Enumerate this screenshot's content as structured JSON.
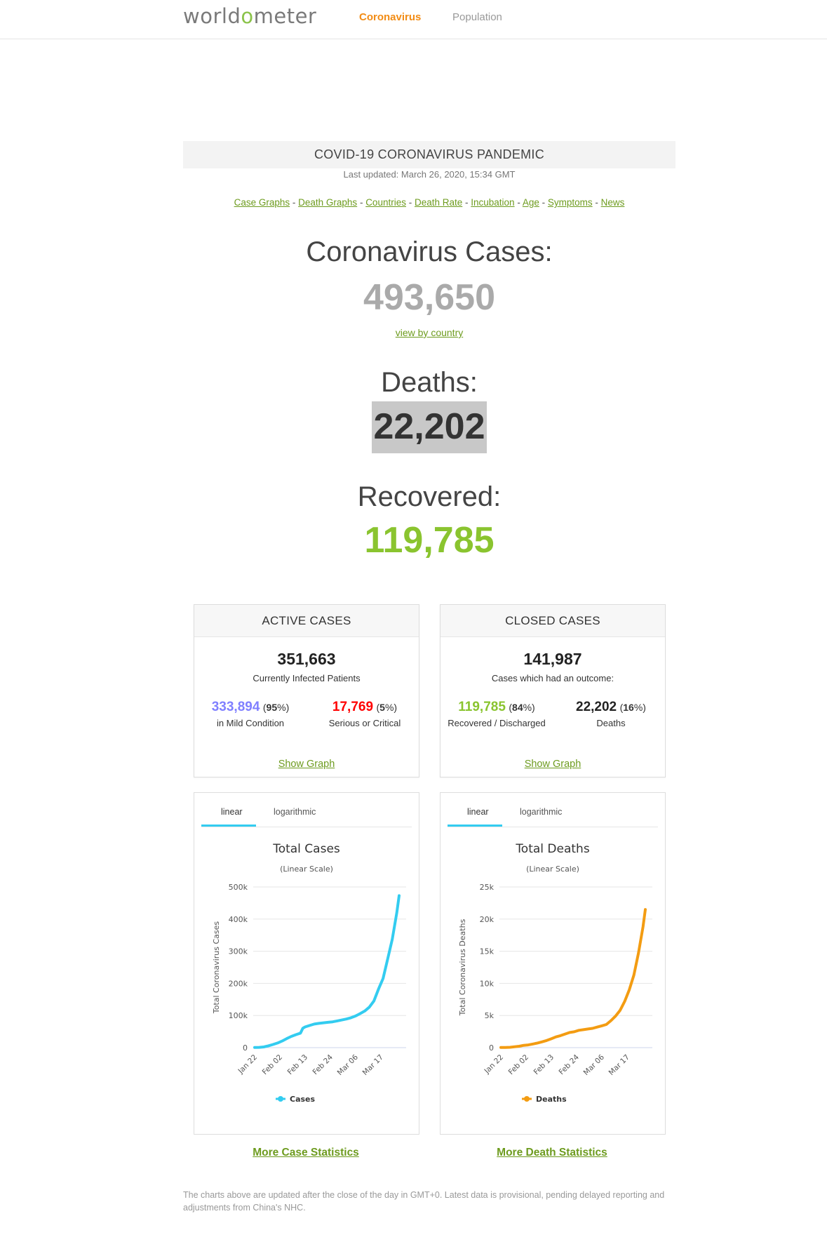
{
  "header": {
    "logo_prefix": "world",
    "logo_o": "o",
    "logo_suffix": "meter",
    "nav": [
      {
        "label": "Coronavirus",
        "active": true
      },
      {
        "label": "Population",
        "active": false
      }
    ]
  },
  "banner": {
    "title": "COVID-19 CORONAVIRUS PANDEMIC",
    "updated": "Last updated: March 26, 2020, 15:34 GMT"
  },
  "quicklinks": [
    "Case Graphs",
    "Death Graphs",
    "Countries",
    "Death Rate",
    "Incubation",
    "Age",
    "Symptoms",
    "News"
  ],
  "quicklinks_separator": " - ",
  "main": {
    "cases_label": "Coronavirus Cases:",
    "cases_value": "493,650",
    "view_by_country": "view by country",
    "deaths_label": "Deaths:",
    "deaths_value": "22,202",
    "recovered_label": "Recovered:",
    "recovered_value": "119,785"
  },
  "active_panel": {
    "header": "ACTIVE CASES",
    "total": "351,663",
    "total_label": "Currently Infected Patients",
    "left_value": "333,894",
    "left_pct": "95",
    "left_label": "in Mild Condition",
    "right_value": "17,769",
    "right_pct": "5",
    "right_label": "Serious or Critical",
    "show_graph": "Show Graph"
  },
  "closed_panel": {
    "header": "CLOSED CASES",
    "total": "141,987",
    "total_label": "Cases which had an outcome:",
    "left_value": "119,785",
    "left_pct": "84",
    "left_label": "Recovered / Discharged",
    "right_value": "22,202",
    "right_pct": "16",
    "right_label": "Deaths",
    "show_graph": "Show Graph"
  },
  "colors": {
    "accent": "#f28c15",
    "link": "#6d9b1e",
    "mild": "#8080ff",
    "critical": "#ff0000",
    "recovered": "#8ac42f",
    "cases_line": "#33ccf0",
    "deaths_line": "#f39c12"
  },
  "chart_tabs": {
    "linear": "linear",
    "log": "logarithmic"
  },
  "chart_data": [
    {
      "type": "line",
      "title": "Total Cases",
      "subtitle": "(Linear Scale)",
      "ylabel": "Total Coronavirus Cases",
      "yticks": [
        "0",
        "100k",
        "200k",
        "300k",
        "400k",
        "500k"
      ],
      "ylim": [
        0,
        500000
      ],
      "xticks": [
        "Jan 22",
        "Feb 02",
        "Feb 13",
        "Feb 24",
        "Mar 06",
        "Mar 17"
      ],
      "legend": "Cases",
      "series": [
        {
          "name": "Cases",
          "color": "#33ccf0",
          "x": [
            "Jan 22",
            "Jan 24",
            "Jan 26",
            "Jan 28",
            "Jan 30",
            "Feb 01",
            "Feb 03",
            "Feb 05",
            "Feb 07",
            "Feb 09",
            "Feb 11",
            "Feb 12",
            "Feb 13",
            "Feb 15",
            "Feb 17",
            "Feb 19",
            "Feb 21",
            "Feb 23",
            "Feb 25",
            "Feb 27",
            "Feb 29",
            "Mar 02",
            "Mar 04",
            "Mar 06",
            "Mar 08",
            "Mar 10",
            "Mar 12",
            "Mar 14",
            "Mar 16",
            "Mar 18",
            "Mar 20",
            "Mar 22",
            "Mar 24",
            "Mar 25"
          ],
          "values": [
            580,
            900,
            2100,
            5600,
            9800,
            14500,
            20600,
            28200,
            34900,
            40500,
            45200,
            60300,
            64400,
            69000,
            73300,
            75600,
            77300,
            78900,
            80400,
            83100,
            86000,
            89100,
            93100,
            98400,
            106000,
            114000,
            126000,
            145000,
            182000,
            215000,
            276000,
            337000,
            420000,
            473000
          ]
        }
      ]
    },
    {
      "type": "line",
      "title": "Total Deaths",
      "subtitle": "(Linear Scale)",
      "ylabel": "Total Coronavirus Deaths",
      "yticks": [
        "0",
        "5k",
        "10k",
        "15k",
        "20k",
        "25k"
      ],
      "ylim": [
        0,
        25000
      ],
      "xticks": [
        "Jan 22",
        "Feb 02",
        "Feb 13",
        "Feb 24",
        "Mar 06",
        "Mar 17"
      ],
      "legend": "Deaths",
      "series": [
        {
          "name": "Deaths",
          "color": "#f39c12",
          "x": [
            "Jan 22",
            "Jan 24",
            "Jan 26",
            "Jan 28",
            "Jan 30",
            "Feb 01",
            "Feb 03",
            "Feb 05",
            "Feb 07",
            "Feb 09",
            "Feb 11",
            "Feb 13",
            "Feb 15",
            "Feb 17",
            "Feb 19",
            "Feb 21",
            "Feb 23",
            "Feb 25",
            "Feb 27",
            "Feb 29",
            "Mar 02",
            "Mar 04",
            "Mar 06",
            "Mar 08",
            "Mar 10",
            "Mar 12",
            "Mar 14",
            "Mar 16",
            "Mar 18",
            "Mar 20",
            "Mar 22",
            "Mar 24",
            "Mar 25"
          ],
          "values": [
            17,
            26,
            56,
            132,
            213,
            362,
            427,
            565,
            724,
            910,
            1115,
            1380,
            1666,
            1868,
            2122,
            2360,
            2469,
            2700,
            2800,
            2900,
            3000,
            3200,
            3400,
            3600,
            4200,
            4900,
            5800,
            7200,
            9000,
            11300,
            14700,
            18800,
            21500
          ]
        }
      ]
    }
  ],
  "more_case": "More Case Statistics",
  "more_death": "More Death Statistics",
  "footer": "The charts above are updated after the close of the day in GMT+0. Latest data is provisional, pending delayed reporting and adjustments from China's NHC."
}
